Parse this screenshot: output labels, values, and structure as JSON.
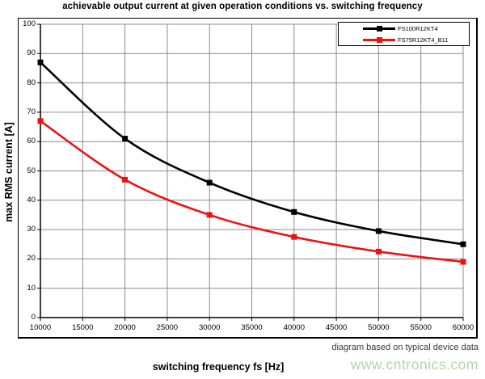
{
  "title": "achievable output current at given operation conditions vs. switching frequency",
  "footnote": "diagram based on typical device data",
  "watermark": "www.cntronics.com",
  "chart_data": {
    "type": "line",
    "x": [
      10000,
      20000,
      30000,
      40000,
      50000,
      60000
    ],
    "series": [
      {
        "name": "FS100R12KT4",
        "color": "#000000",
        "values": [
          87,
          61,
          46,
          36,
          29.5,
          25
        ]
      },
      {
        "name": "FS75R12KT4_B11",
        "color": "#ee1111",
        "values": [
          67,
          47,
          35,
          27.5,
          22.5,
          19
        ]
      }
    ],
    "title": "achievable output current at given operation conditions vs. switching frequency",
    "xlabel": "switching frequency fs [Hz]",
    "ylabel": "max RMS current [A]",
    "xlim": [
      10000,
      60000
    ],
    "ylim": [
      0,
      100
    ],
    "x_ticks": [
      10000,
      15000,
      20000,
      25000,
      30000,
      35000,
      40000,
      45000,
      50000,
      55000,
      60000
    ],
    "y_ticks": [
      0,
      10,
      20,
      30,
      40,
      50,
      60,
      70,
      80,
      90,
      100
    ],
    "grid": true,
    "grid_color": "#8c8c8c",
    "legend_position": "top-right",
    "marker": "square",
    "smooth_lines": true
  }
}
